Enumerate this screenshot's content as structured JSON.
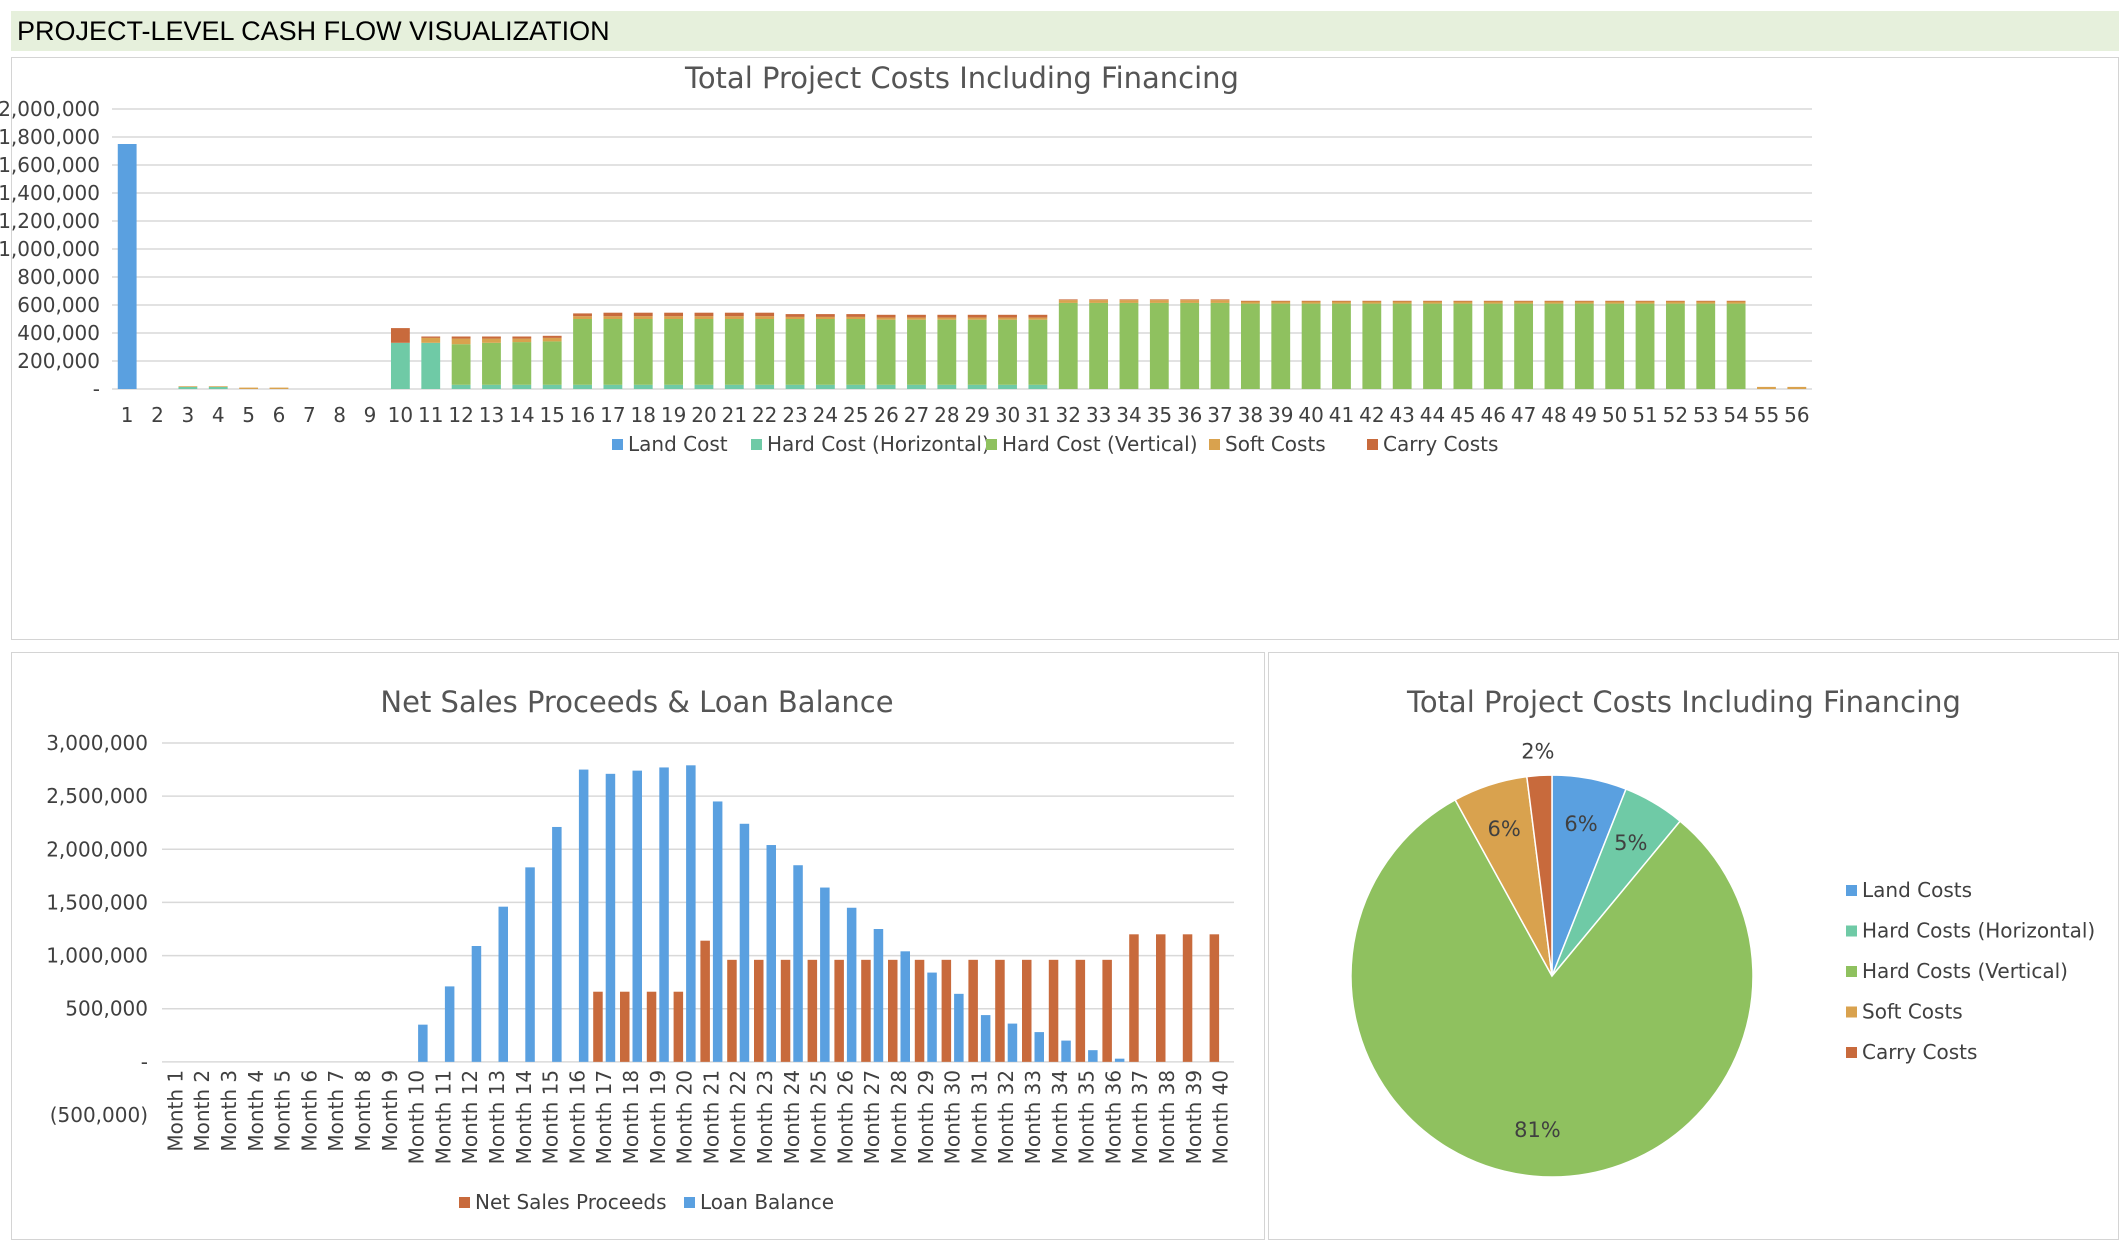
{
  "header": {
    "title": "PROJECT-LEVEL CASH FLOW VISUALIZATION"
  },
  "chart_data": [
    {
      "type": "bar",
      "stacked": true,
      "title": "Total Project Costs Including Financing",
      "categories": [
        "1",
        "2",
        "3",
        "4",
        "5",
        "6",
        "7",
        "8",
        "9",
        "10",
        "11",
        "12",
        "13",
        "14",
        "15",
        "16",
        "17",
        "18",
        "19",
        "20",
        "21",
        "22",
        "23",
        "24",
        "25",
        "26",
        "27",
        "28",
        "29",
        "30",
        "31",
        "32",
        "33",
        "34",
        "35",
        "36",
        "37",
        "38",
        "39",
        "40",
        "41",
        "42",
        "43",
        "44",
        "45",
        "46",
        "47",
        "48",
        "49",
        "50",
        "51",
        "52",
        "53",
        "54",
        "55",
        "56"
      ],
      "ylim": [
        0,
        2000000
      ],
      "yticks": [
        0,
        200000,
        400000,
        600000,
        800000,
        1000000,
        1200000,
        1400000,
        1600000,
        1800000,
        2000000
      ],
      "ytick_labels": [
        "-",
        "200,000",
        "400,000",
        "600,000",
        "800,000",
        "1,000,000",
        "1,200,000",
        "1,400,000",
        "1,600,000",
        "1,800,000",
        "2,000,000"
      ],
      "legend_position": "bottom",
      "grid": true,
      "series": [
        {
          "name": "Land Cost",
          "color": "#5aa0e0",
          "values": [
            1750000,
            0,
            0,
            0,
            0,
            0,
            0,
            0,
            0,
            0,
            0,
            0,
            0,
            0,
            0,
            0,
            0,
            0,
            0,
            0,
            0,
            0,
            0,
            0,
            0,
            0,
            0,
            0,
            0,
            0,
            0,
            0,
            0,
            0,
            0,
            0,
            0,
            0,
            0,
            0,
            0,
            0,
            0,
            0,
            0,
            0,
            0,
            0,
            0,
            0,
            0,
            0,
            0,
            0,
            0,
            0
          ]
        },
        {
          "name": "Hard Cost (Horizontal)",
          "color": "#6fcaa6",
          "values": [
            0,
            0,
            15000,
            15000,
            0,
            0,
            0,
            0,
            0,
            330000,
            330000,
            30000,
            30000,
            30000,
            30000,
            30000,
            30000,
            30000,
            30000,
            30000,
            30000,
            30000,
            30000,
            30000,
            30000,
            30000,
            30000,
            30000,
            30000,
            30000,
            30000,
            0,
            0,
            0,
            0,
            0,
            0,
            0,
            0,
            0,
            0,
            0,
            0,
            0,
            0,
            0,
            0,
            0,
            0,
            0,
            0,
            0,
            0,
            0,
            0,
            0
          ]
        },
        {
          "name": "Hard Cost (Vertical)",
          "color": "#8fc15f",
          "values": [
            0,
            0,
            0,
            0,
            0,
            0,
            0,
            0,
            0,
            0,
            0,
            290000,
            300000,
            305000,
            310000,
            470000,
            470000,
            470000,
            470000,
            470000,
            470000,
            470000,
            470000,
            470000,
            470000,
            465000,
            465000,
            465000,
            465000,
            465000,
            465000,
            615000,
            615000,
            615000,
            615000,
            615000,
            615000,
            610000,
            610000,
            610000,
            610000,
            610000,
            610000,
            610000,
            610000,
            610000,
            610000,
            610000,
            610000,
            610000,
            610000,
            610000,
            610000,
            610000,
            0,
            0
          ]
        },
        {
          "name": "Soft Costs",
          "color": "#d9a24e",
          "values": [
            0,
            0,
            5000,
            5000,
            10000,
            10000,
            0,
            0,
            0,
            0,
            35000,
            40000,
            30000,
            25000,
            25000,
            20000,
            20000,
            20000,
            20000,
            20000,
            20000,
            20000,
            15000,
            15000,
            15000,
            15000,
            15000,
            15000,
            15000,
            15000,
            15000,
            20000,
            20000,
            20000,
            20000,
            20000,
            20000,
            15000,
            15000,
            15000,
            15000,
            15000,
            15000,
            15000,
            15000,
            15000,
            15000,
            15000,
            15000,
            15000,
            15000,
            15000,
            15000,
            15000,
            15000,
            15000
          ]
        },
        {
          "name": "Carry Costs",
          "color": "#c86a3c",
          "values": [
            0,
            0,
            0,
            0,
            0,
            0,
            0,
            0,
            0,
            105000,
            10000,
            15000,
            15000,
            15000,
            15000,
            20000,
            25000,
            25000,
            25000,
            25000,
            25000,
            25000,
            20000,
            20000,
            20000,
            20000,
            20000,
            20000,
            20000,
            20000,
            20000,
            5000,
            5000,
            5000,
            5000,
            5000,
            5000,
            5000,
            5000,
            5000,
            5000,
            5000,
            5000,
            5000,
            5000,
            5000,
            5000,
            5000,
            5000,
            5000,
            5000,
            5000,
            5000,
            5000,
            0,
            0
          ]
        }
      ]
    },
    {
      "type": "bar",
      "title": "Net Sales Proceeds & Loan Balance",
      "categories": [
        "Month 1",
        "Month 2",
        "Month 3",
        "Month 4",
        "Month 5",
        "Month 6",
        "Month 7",
        "Month 8",
        "Month 9",
        "Month 10",
        "Month 11",
        "Month 12",
        "Month 13",
        "Month 14",
        "Month 15",
        "Month 16",
        "Month 17",
        "Month 18",
        "Month 19",
        "Month 20",
        "Month 21",
        "Month 22",
        "Month 23",
        "Month 24",
        "Month 25",
        "Month 26",
        "Month 27",
        "Month 28",
        "Month 29",
        "Month 30",
        "Month 31",
        "Month 32",
        "Month 33",
        "Month 34",
        "Month 35",
        "Month 36",
        "Month 37",
        "Month 38",
        "Month 39",
        "Month 40"
      ],
      "ylim": [
        -500000,
        3000000
      ],
      "yticks": [
        -500000,
        0,
        500000,
        1000000,
        1500000,
        2000000,
        2500000,
        3000000
      ],
      "ytick_labels": [
        "(500,000)",
        "-",
        "500,000",
        "1,000,000",
        "1,500,000",
        "2,000,000",
        "2,500,000",
        "3,000,000"
      ],
      "legend_position": "bottom",
      "grid": true,
      "series": [
        {
          "name": "Net Sales Proceeds",
          "color": "#c86a3c",
          "values": [
            0,
            0,
            0,
            0,
            0,
            0,
            0,
            0,
            0,
            0,
            0,
            0,
            0,
            0,
            0,
            0,
            660000,
            660000,
            660000,
            660000,
            1140000,
            960000,
            960000,
            960000,
            960000,
            960000,
            960000,
            960000,
            960000,
            960000,
            960000,
            960000,
            960000,
            960000,
            960000,
            960000,
            1200000,
            1200000,
            1200000,
            1200000
          ]
        },
        {
          "name": "Loan Balance",
          "color": "#5aa0e0",
          "values": [
            0,
            0,
            0,
            0,
            0,
            0,
            0,
            0,
            0,
            350000,
            710000,
            1090000,
            1460000,
            1830000,
            2210000,
            2750000,
            2710000,
            2740000,
            2770000,
            2790000,
            2450000,
            2240000,
            2040000,
            1850000,
            1640000,
            1450000,
            1250000,
            1040000,
            840000,
            640000,
            440000,
            360000,
            280000,
            200000,
            110000,
            30000,
            0,
            0,
            0,
            0
          ]
        }
      ]
    },
    {
      "type": "pie",
      "title": "Total Project Costs Including Financing",
      "legend_position": "right",
      "slices": [
        {
          "label": "Land Costs",
          "value": 6,
          "display": "6%",
          "color": "#5aa0e0"
        },
        {
          "label": "Hard Costs (Horizontal)",
          "value": 5,
          "display": "5%",
          "color": "#6fcaa6"
        },
        {
          "label": "Hard Costs (Vertical)",
          "value": 81,
          "display": "81%",
          "color": "#8fc15f"
        },
        {
          "label": "Soft Costs",
          "value": 6,
          "display": "6%",
          "color": "#d9a24e"
        },
        {
          "label": "Carry Costs",
          "value": 2,
          "display": "2%",
          "color": "#c86a3c"
        }
      ]
    }
  ]
}
